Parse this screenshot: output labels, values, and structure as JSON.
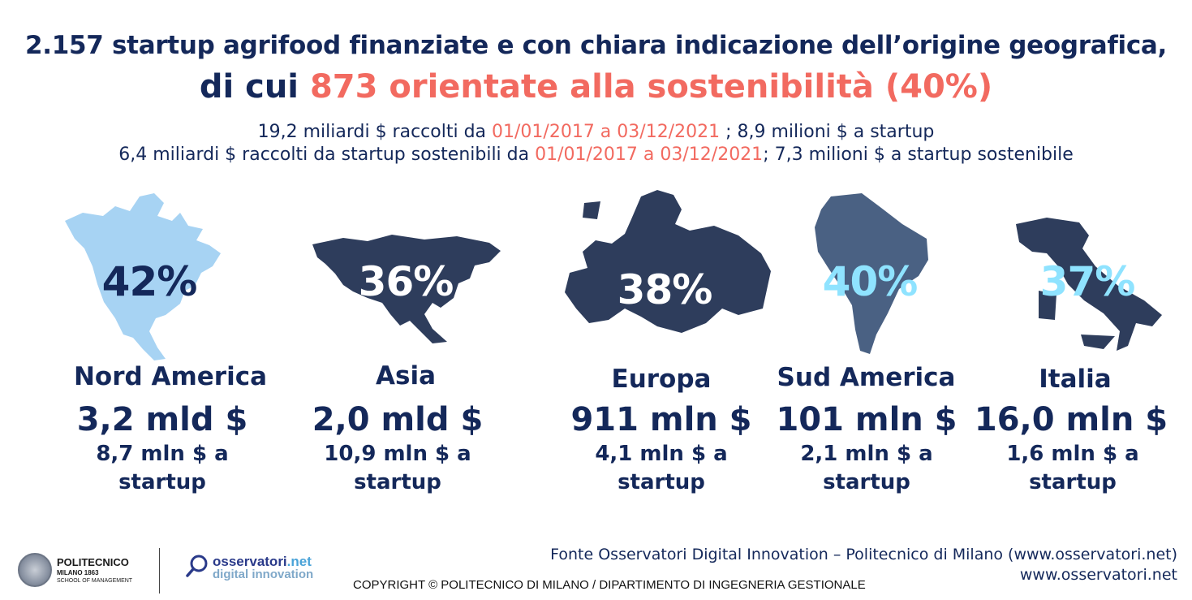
{
  "header": {
    "title_line1": "2.157 startup agrifood finanziate e con chiara indicazione dell’origine geografica,",
    "title_line2_prefix": "di cui ",
    "title_line2_highlight": "873 orientate alla sostenibilità (40%)",
    "sub1_a": "19,2 miliardi $ raccolti da ",
    "sub1_date": "01/01/2017 a 03/12/2021",
    "sub1_b": " ; 8,9 milioni $ a startup",
    "sub2_a": "6,4 miliardi $ raccolti da startup sostenibili da ",
    "sub2_date": "01/01/2017 a 03/12/2021",
    "sub2_b": "; 7,3 milioni $ a startup sostenibile"
  },
  "regions": [
    {
      "name": "Nord America",
      "pct": "42%",
      "amount": "3,2 mld $",
      "per_line1": "8,7 mln $ a",
      "per_line2": "startup",
      "map_color": "#a7d3f3",
      "pct_color": "#14285a",
      "icon": "north-america-map"
    },
    {
      "name": "Asia",
      "pct": "36%",
      "amount": "2,0 mld $",
      "per_line1": "10,9 mln $ a",
      "per_line2": "startup",
      "map_color": "#2e3d5c",
      "pct_color": "#ffffff",
      "icon": "asia-map"
    },
    {
      "name": "Europa",
      "pct": "38%",
      "amount": "911 mln $",
      "per_line1": "4,1 mln $ a",
      "per_line2": "startup",
      "map_color": "#2e3d5c",
      "pct_color": "#ffffff",
      "icon": "europe-map"
    },
    {
      "name": "Sud America",
      "pct": "40%",
      "amount": "101 mln $",
      "per_line1": "2,1 mln $ a",
      "per_line2": "startup",
      "map_color": "#4a6183",
      "pct_color": "#8fe3ff",
      "icon": "south-america-map"
    },
    {
      "name": "Italia",
      "pct": "37%",
      "amount": "16,0 mln $",
      "per_line1": "1,6 mln $ a",
      "per_line2": "startup",
      "map_color": "#2e3d5c",
      "pct_color": "#8fe3ff",
      "icon": "italy-map"
    }
  ],
  "footer": {
    "polimi_name": "POLITECNICO",
    "polimi_city": "MILANO 1863",
    "polimi_school": "SCHOOL OF MANAGEMENT",
    "oss_name": "osservatori",
    "oss_tld": ".net",
    "oss_sub": "digital innovation",
    "fonte": "Fonte Osservatori Digital Innovation – Politecnico di Milano (www.osservatori.net)",
    "site": "www.osservatori.net",
    "copyright": "COPYRIGHT © POLITECNICO DI MILANO / DIPARTIMENTO DI INGEGNERIA GESTIONALE"
  }
}
